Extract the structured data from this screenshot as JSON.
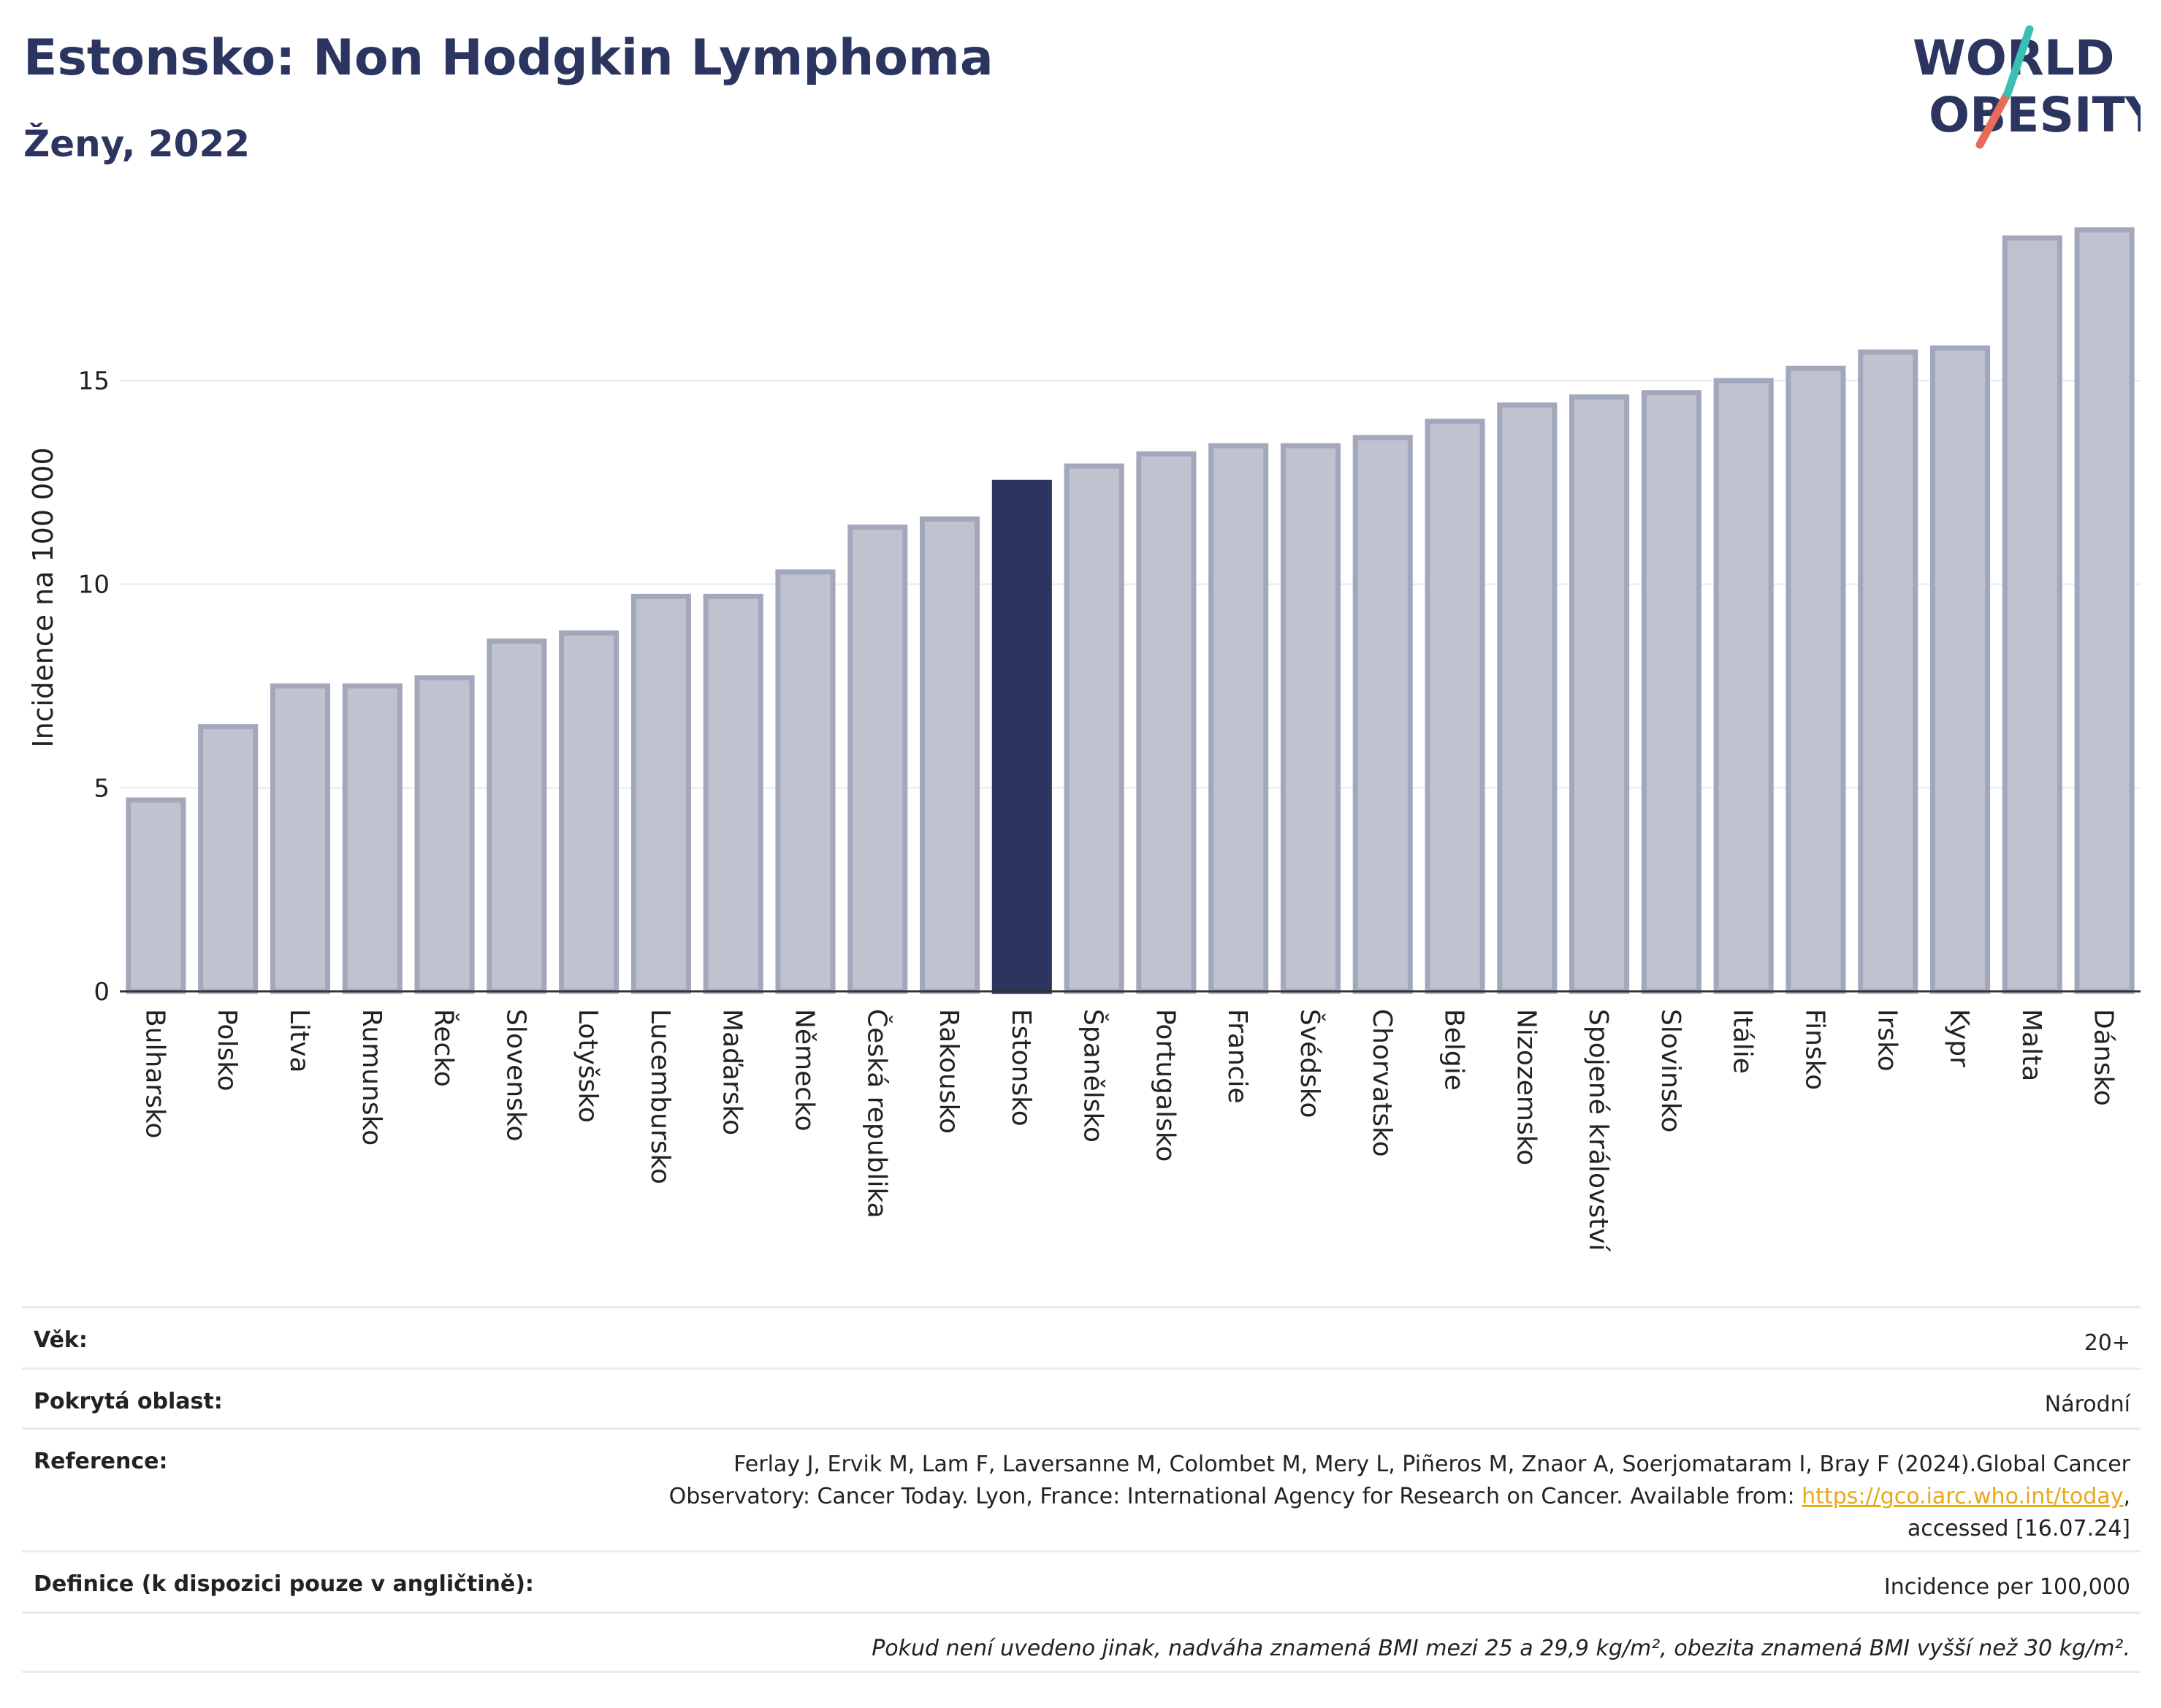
{
  "header": {
    "title": "Estonsko: Non Hodgkin Lymphoma",
    "subtitle": "Ženy, 2022",
    "logo_line1": "WORLD",
    "logo_line2": "OBESITY"
  },
  "chart_data": {
    "type": "bar",
    "ylabel": "Incidence na 100 000",
    "ylim": [
      0,
      19
    ],
    "yticks": [
      0,
      5,
      10,
      15
    ],
    "grid": true,
    "highlight": "Estonsko",
    "colors": {
      "bar": "#c0c3cf",
      "bar_border": "#a2a7bc",
      "highlight": "#2b3560",
      "grid": "#e6e8ef",
      "axis": "#333333"
    },
    "categories": [
      "Bulharsko",
      "Polsko",
      "Litva",
      "Rumunsko",
      "Řecko",
      "Slovensko",
      "Lotyšsko",
      "Lucembursko",
      "Maďarsko",
      "Německo",
      "Česká republika",
      "Rakousko",
      "Estonsko",
      "Španělsko",
      "Portugalsko",
      "Francie",
      "Švédsko",
      "Chorvatsko",
      "Belgie",
      "Nizozemsko",
      "Spojené království",
      "Slovinsko",
      "Itálie",
      "Finsko",
      "Irsko",
      "Kypr",
      "Malta",
      "Dánsko"
    ],
    "values": [
      4.7,
      6.5,
      7.5,
      7.5,
      7.7,
      8.6,
      8.8,
      9.7,
      9.7,
      10.3,
      11.4,
      11.6,
      12.5,
      12.9,
      13.2,
      13.4,
      13.4,
      13.6,
      14.0,
      14.4,
      14.6,
      14.7,
      15.0,
      15.3,
      15.7,
      15.8,
      18.5,
      18.7
    ]
  },
  "info": {
    "age_label": "Věk:",
    "age_value": "20+",
    "area_label": "Pokrytá oblast:",
    "area_value": "Národní",
    "ref_label": "Reference:",
    "ref_line1": "Ferlay J, Ervik M, Lam F, Laversanne M, Colombet M, Mery L, Piñeros M, Znaor A, Soerjomataram I, Bray F (2024).Global Cancer",
    "ref_line2_pre": "Observatory: Cancer Today. Lyon, France: International Agency for Research on Cancer. Available from: ",
    "ref_link": "https://gco.iarc.who.int/today",
    "ref_line2_post": ",",
    "ref_line3": "accessed [16.07.24]",
    "def_label": "Definice (k dispozici pouze v angličtině):",
    "def_value": "Incidence per 100,000",
    "note": "Pokud není uvedeno jinak, nadváha znamená BMI mezi 25 a 29,9 kg/m², obezita znamená BMI vyšší než 30 kg/m²."
  }
}
